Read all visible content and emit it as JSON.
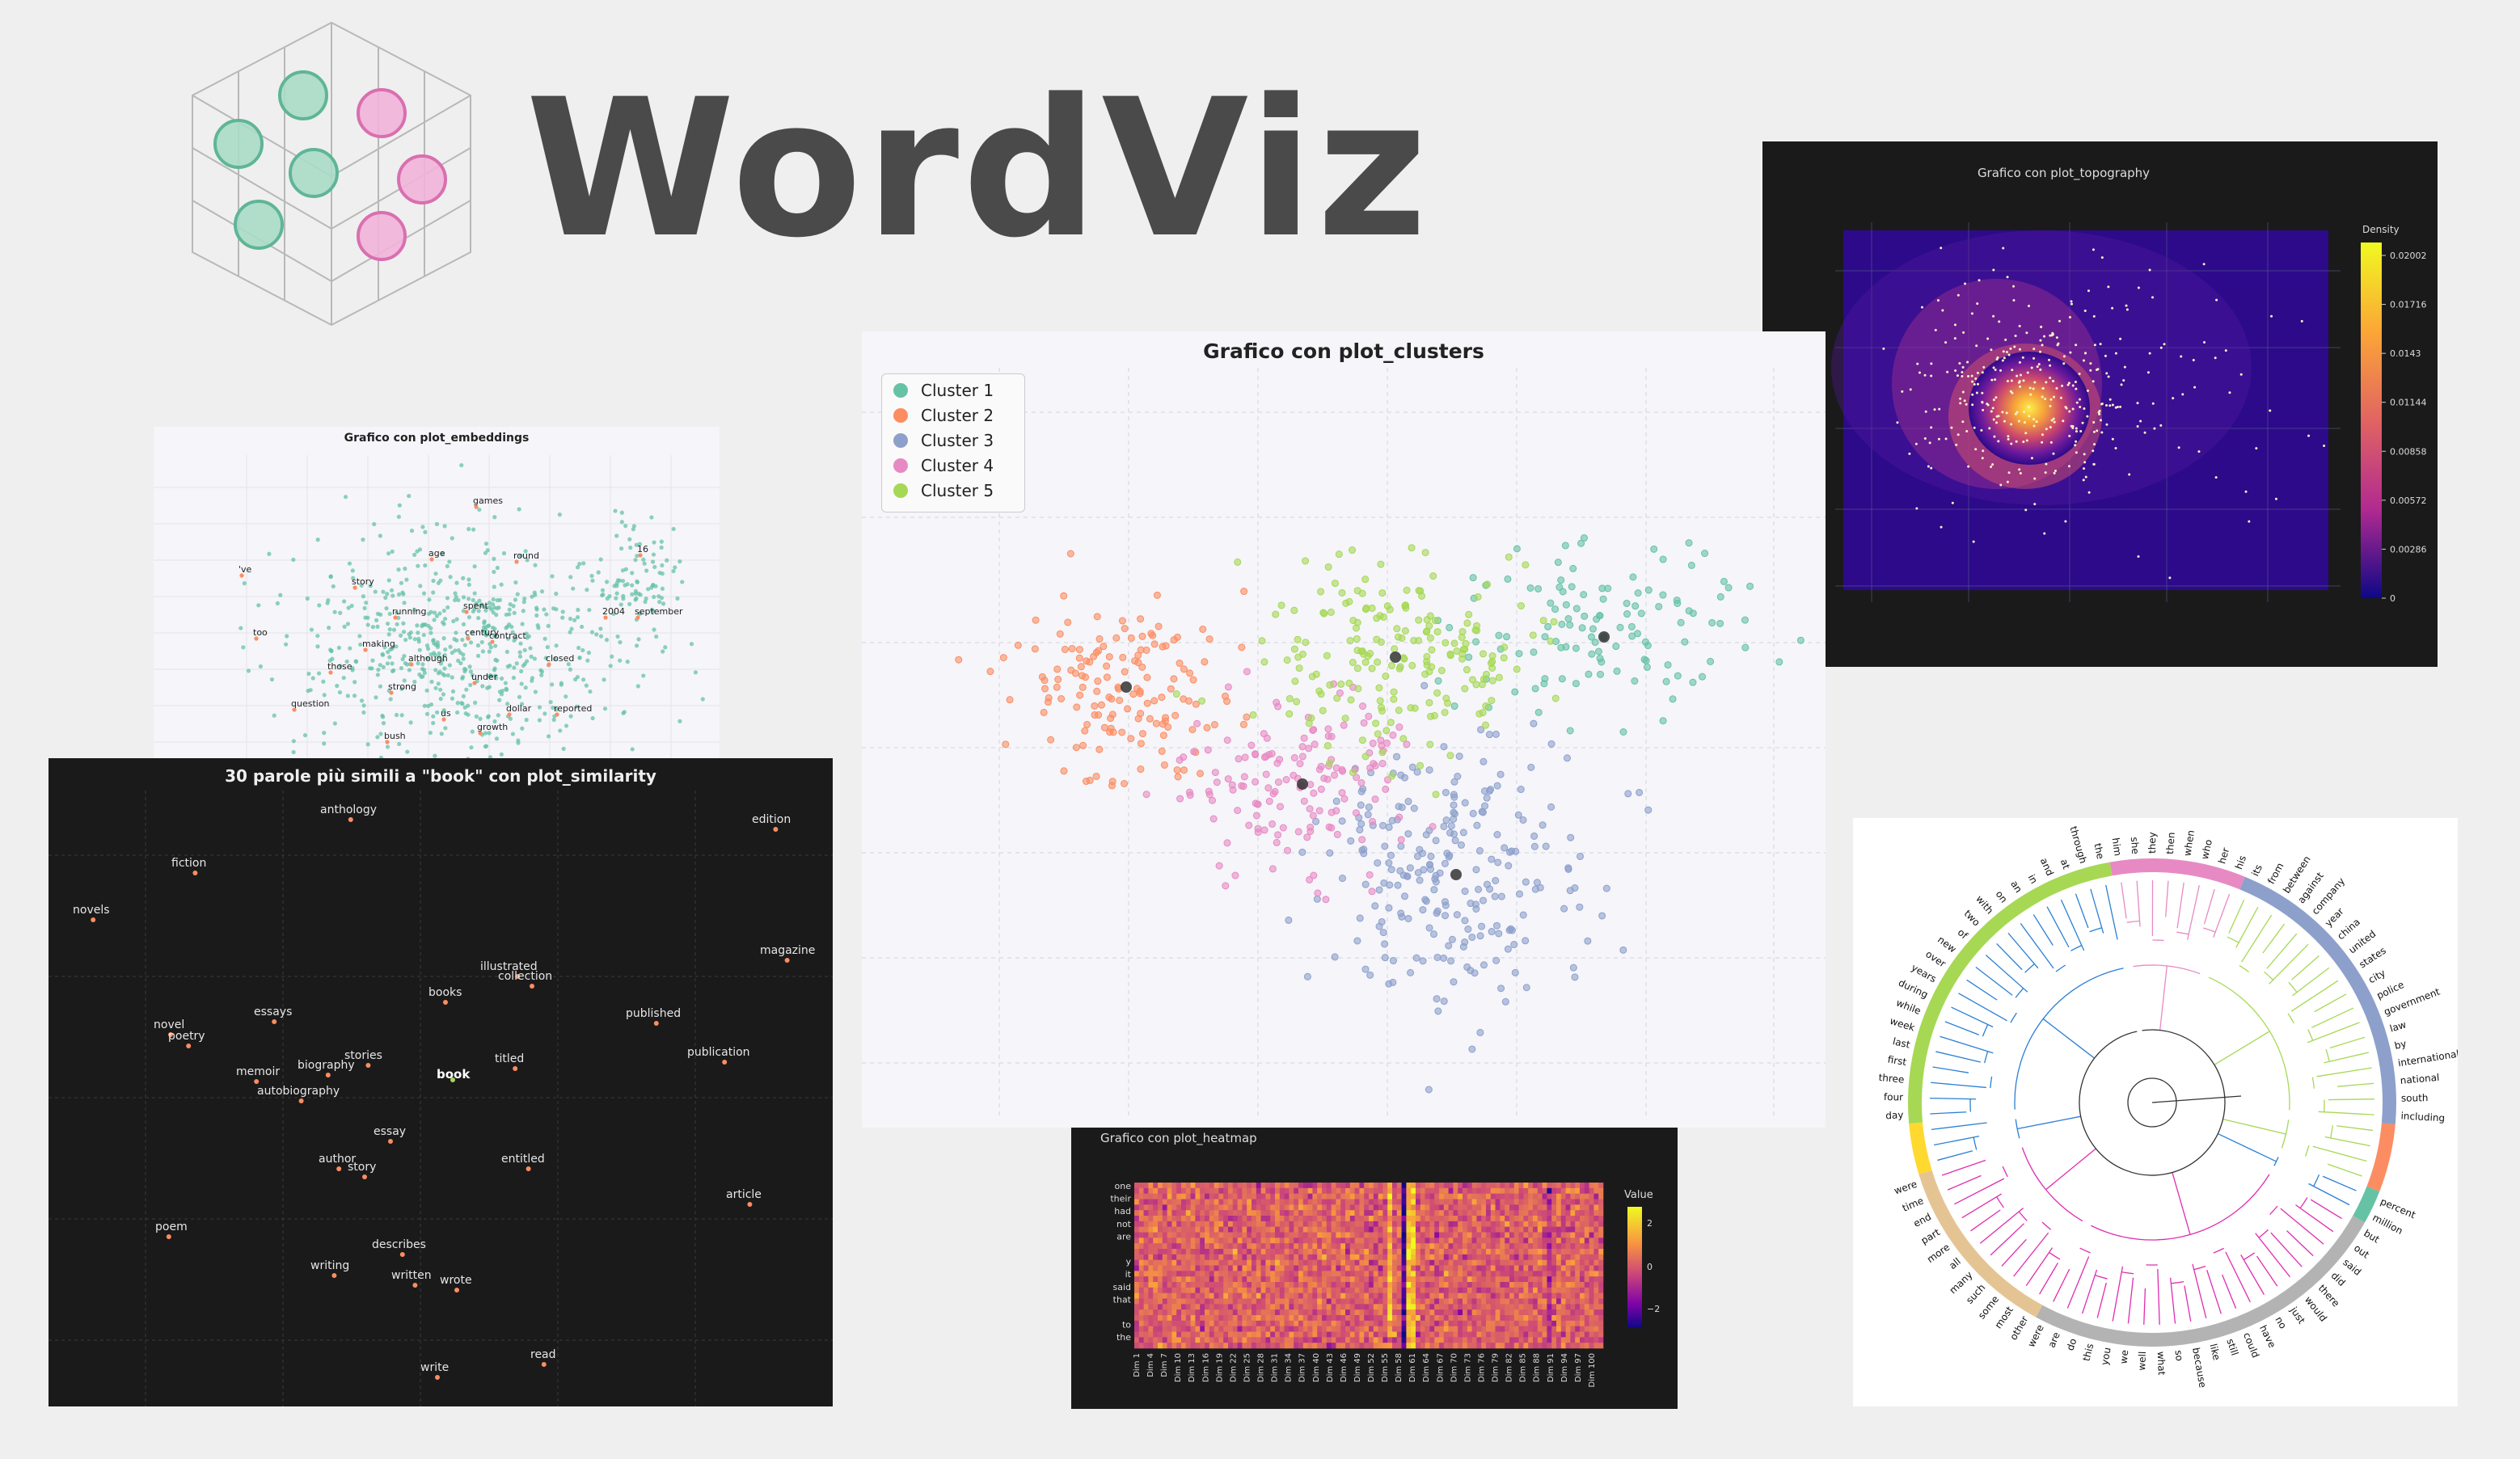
{
  "brand": {
    "name": "WordViz",
    "text_color": "#4a4a4a",
    "icon": "cube-with-circles-icon"
  },
  "colors": {
    "cluster1": "#66c2a5",
    "cluster2": "#fc8d62",
    "cluster3": "#8da0cb",
    "cluster4": "#e78ac3",
    "cluster5": "#a6d854",
    "dark_bg": "#1a1a1a",
    "light_bg": "#f5f5fa"
  },
  "embeddings": {
    "title": "Grafico con plot_embeddings",
    "words": [
      "games",
      "age",
      "round",
      "'ve",
      "story",
      "16",
      "running",
      "spent",
      "2004",
      "september",
      "too",
      "contract",
      "making",
      "century",
      "closed",
      "those",
      "although",
      "under",
      "strong",
      "question",
      "us",
      "dollar",
      "reported",
      "bush",
      "growth"
    ]
  },
  "topography": {
    "title": "Grafico con plot_topography",
    "colorbar_title": "Density",
    "ticks": [
      "0.02002",
      "0.01716",
      "0.0143",
      "0.01144",
      "0.00858",
      "0.00572",
      "0.00286",
      "0"
    ]
  },
  "clusters": {
    "title": "Grafico con plot_clusters",
    "legend": [
      "Cluster 1",
      "Cluster 2",
      "Cluster 3",
      "Cluster 4",
      "Cluster 5"
    ]
  },
  "similarity": {
    "title": "30 parole più simili a \"book\" con plot_similarity",
    "target": "book",
    "words": [
      "anthology",
      "edition",
      "fiction",
      "novels",
      "magazine",
      "illustrated",
      "collection",
      "books",
      "essays",
      "published",
      "novel",
      "poetry",
      "stories",
      "titled",
      "publication",
      "memoir",
      "biography",
      "autobiography",
      "essay",
      "author",
      "story",
      "entitled",
      "article",
      "poem",
      "describes",
      "writing",
      "written",
      "wrote",
      "read",
      "write"
    ]
  },
  "heatmap": {
    "title": "Grafico con plot_heatmap",
    "colorbar_title": "Value",
    "colorbar_ticks": [
      "2",
      "0",
      "−2"
    ],
    "y_labels": [
      "one",
      "their",
      "had",
      "not",
      "are",
      "",
      "y",
      "it",
      "said",
      "that",
      "",
      "to",
      "the"
    ],
    "x_labels": [
      "Dim 1",
      "Dim 4",
      "Dim 7",
      "Dim 10",
      "Dim 13",
      "Dim 16",
      "Dim 19",
      "Dim 22",
      "Dim 25",
      "Dim 28",
      "Dim 31",
      "Dim 34",
      "Dim 37",
      "Dim 40",
      "Dim 43",
      "Dim 46",
      "Dim 49",
      "Dim 52",
      "Dim 55",
      "Dim 58",
      "Dim 61",
      "Dim 64",
      "Dim 67",
      "Dim 70",
      "Dim 73",
      "Dim 76",
      "Dim 79",
      "Dim 82",
      "Dim 85",
      "Dim 88",
      "Dim 91",
      "Dim 94",
      "Dim 97",
      "Dim 100"
    ]
  },
  "dendrogram": {
    "segments": [
      {
        "color": "#e78ac3",
        "words": [
          "him",
          "she",
          "they",
          "then",
          "when",
          "who",
          "her",
          "his"
        ]
      },
      {
        "color": "#8da0cb",
        "words": [
          "its",
          "from",
          "between",
          "against",
          "company",
          "year",
          "china",
          "united",
          "states",
          "city",
          "police",
          "government",
          "law",
          "by",
          "international",
          "national",
          "south",
          "including"
        ]
      },
      {
        "color": "#fc8d62",
        "words": [
          "",
          "",
          "",
          ""
        ]
      },
      {
        "color": "#66c2a5",
        "words": [
          "percent",
          "million"
        ]
      },
      {
        "color": "#b3b3b3",
        "words": [
          "but",
          "out",
          "said",
          "did",
          "there",
          "would",
          "just",
          "no",
          "have",
          "could",
          "still",
          "like",
          "because",
          "so",
          "what",
          "well",
          "we",
          "you",
          "this",
          "do",
          "are",
          "were"
        ]
      },
      {
        "color": "#e5c494",
        "words": [
          "other",
          "most",
          "some",
          "such",
          "many",
          "all",
          "more",
          "part",
          "end",
          "time",
          "were"
        ]
      },
      {
        "color": "#ffd92f",
        "words": [
          "",
          "",
          ""
        ]
      },
      {
        "color": "#a6d854",
        "words": [
          "day",
          "four",
          "three",
          "first",
          "last",
          "week",
          "while",
          "during",
          "years",
          "over",
          "new",
          "of",
          "two",
          "with",
          "on",
          "an",
          "in",
          "and",
          "at",
          "through",
          "the"
        ]
      }
    ]
  }
}
